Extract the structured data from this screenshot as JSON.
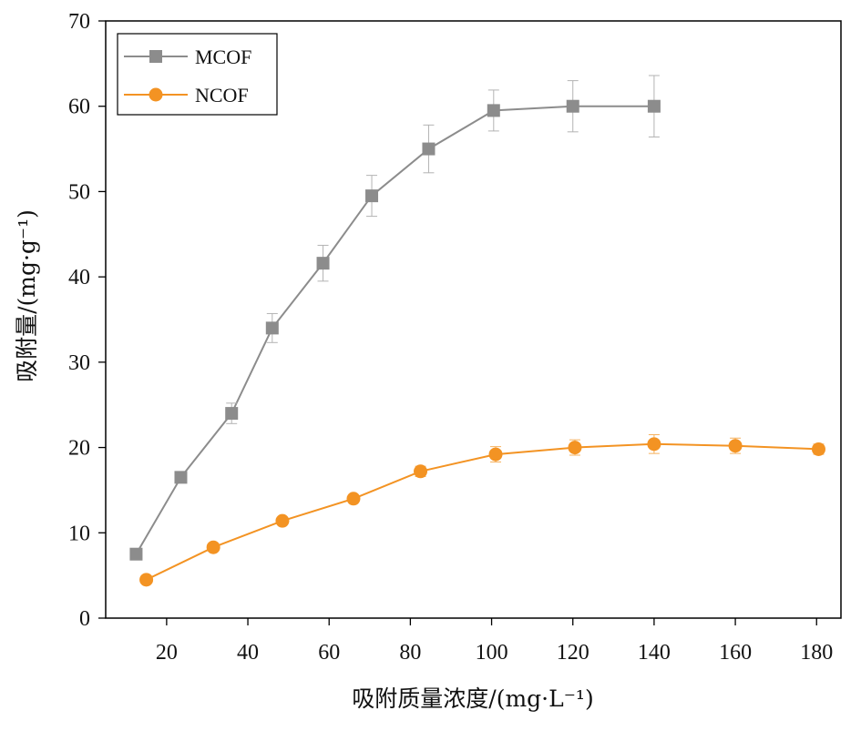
{
  "chart_data": {
    "type": "line",
    "xlabel": "吸附质量浓度/(mg·L⁻¹)",
    "ylabel": "吸附量/(mg·g⁻¹)",
    "xlim": [
      5,
      186
    ],
    "ylim": [
      0,
      70
    ],
    "x_ticks": [
      20,
      40,
      60,
      80,
      100,
      120,
      140,
      160,
      180
    ],
    "y_ticks": [
      0,
      10,
      20,
      30,
      40,
      50,
      60,
      70
    ],
    "grid": false,
    "legend_position": "top-left",
    "series": [
      {
        "name": "MCOF",
        "color": "#8c8c8c",
        "marker": "square",
        "x": [
          12.5,
          23.5,
          36,
          46,
          58.5,
          70.5,
          84.5,
          100.5,
          120,
          140
        ],
        "y": [
          7.5,
          16.5,
          24,
          34,
          41.6,
          49.5,
          55,
          59.5,
          60,
          60
        ],
        "error": [
          0,
          0,
          1.2,
          1.7,
          2.1,
          2.4,
          2.8,
          2.4,
          3,
          3.6
        ]
      },
      {
        "name": "NCOF",
        "color": "#f39323",
        "marker": "circle",
        "x": [
          15,
          31.5,
          48.5,
          66,
          82.5,
          101,
          120.5,
          140,
          160,
          180.5
        ],
        "y": [
          4.5,
          8.3,
          11.4,
          14,
          17.2,
          19.2,
          20,
          20.4,
          20.2,
          19.8
        ],
        "error": [
          0,
          0,
          0,
          0,
          0.6,
          0.9,
          0.9,
          1.1,
          0.9,
          0.6
        ]
      }
    ]
  }
}
